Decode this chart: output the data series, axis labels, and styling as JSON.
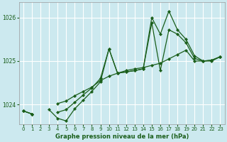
{
  "xlabel": "Graphe pression niveau de la mer (hPa)",
  "ylabel": "",
  "background_color": "#cce9ef",
  "grid_color": "#ffffff",
  "line_color": "#1a5e1a",
  "xlim": [
    -0.5,
    23.5
  ],
  "ylim": [
    1023.55,
    1026.35
  ],
  "yticks": [
    1024,
    1025,
    1026
  ],
  "xticks": [
    0,
    1,
    2,
    3,
    4,
    5,
    6,
    7,
    8,
    9,
    10,
    11,
    12,
    13,
    14,
    15,
    16,
    17,
    18,
    19,
    20,
    21,
    22,
    23
  ],
  "hours": [
    0,
    1,
    2,
    3,
    4,
    5,
    6,
    7,
    8,
    9,
    10,
    11,
    12,
    13,
    14,
    15,
    16,
    17,
    18,
    19,
    20,
    21,
    22,
    23
  ],
  "series1": [
    1023.85,
    1023.78,
    null,
    null,
    1024.02,
    1024.08,
    1024.2,
    1024.3,
    1024.4,
    1024.55,
    1024.65,
    1024.72,
    1024.78,
    1024.82,
    1024.85,
    1024.9,
    1024.95,
    1025.05,
    1025.15,
    1025.25,
    1025.0,
    1025.0,
    1025.02,
    1025.1
  ],
  "series2": [
    1023.85,
    1023.78,
    null,
    null,
    1023.82,
    1023.88,
    1024.05,
    1024.22,
    1024.38,
    1024.6,
    1025.28,
    1024.72,
    1024.75,
    1024.78,
    1024.82,
    1026.0,
    1025.62,
    1026.15,
    1025.72,
    1025.5,
    1025.12,
    1025.0,
    1025.02,
    1025.1
  ],
  "series3": [
    1023.85,
    1023.78,
    null,
    1023.88,
    1023.68,
    1023.62,
    1023.9,
    1024.1,
    1024.3,
    1024.52,
    1025.28,
    1024.72,
    1024.75,
    1024.78,
    1024.82,
    1025.88,
    1024.78,
    1025.72,
    1025.62,
    1025.42,
    1025.06,
    1025.0,
    1025.0,
    1025.1
  ]
}
